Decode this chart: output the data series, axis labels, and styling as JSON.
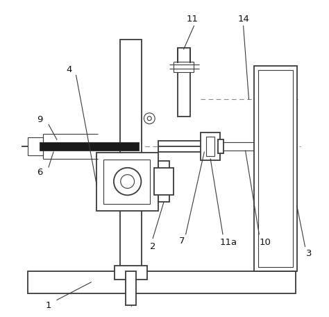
{
  "fig_width": 4.74,
  "fig_height": 4.57,
  "dpi": 100,
  "bg_color": "#ffffff",
  "lc": "#3a3a3a",
  "lw_main": 1.3,
  "lw_thin": 0.8,
  "lw_dash": 0.8
}
